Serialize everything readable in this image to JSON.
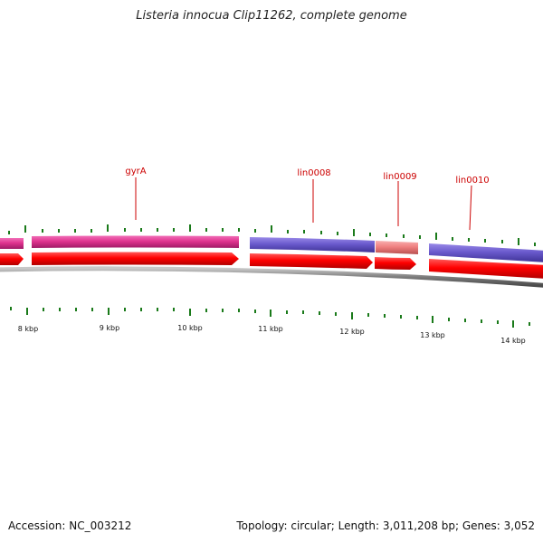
{
  "title": "Listeria innocua Clip11262, complete genome",
  "footer": {
    "accession": "Accession: NC_003212",
    "stats": "Topology: circular; Length: 3,011,208 bp; Genes: 3,052"
  },
  "colors": {
    "magenta_gene": "#e0338f",
    "blue_gene": "#6a5acd",
    "salmon_gene": "#f08080",
    "red_cds": "#ff0000",
    "label_red": "#cc0000",
    "tick_green": "#1a7a1a",
    "backbone": "#808080"
  },
  "tick_labels": [
    {
      "label": "8 kbp",
      "kb": 8
    },
    {
      "label": "9 kbp",
      "kb": 9
    },
    {
      "label": "10 kbp",
      "kb": 10
    },
    {
      "label": "11 kbp",
      "kb": 11
    },
    {
      "label": "12 kbp",
      "kb": 12
    },
    {
      "label": "13 kbp",
      "kb": 13
    },
    {
      "label": "14 kbp",
      "kb": 14
    }
  ],
  "gene_labels": [
    {
      "name": "gyrA"
    },
    {
      "name": "lin0008"
    },
    {
      "name": "lin0009"
    },
    {
      "name": "lin0010"
    }
  ]
}
